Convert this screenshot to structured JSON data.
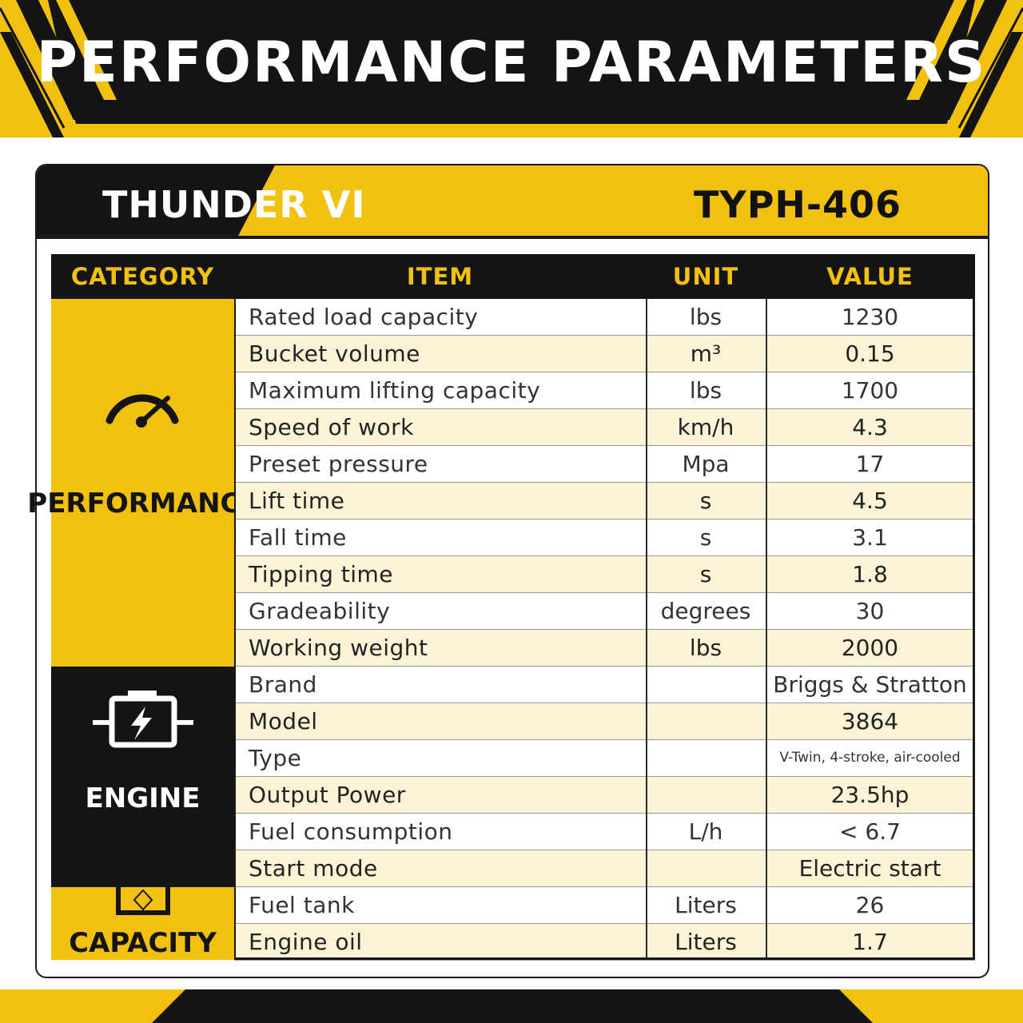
{
  "header": {
    "title": "PERFORMANCE PARAMETERS"
  },
  "product": {
    "name": "THUNDER VI",
    "model": "TYPH-406"
  },
  "table": {
    "columns": [
      "CATEGORY",
      "ITEM",
      "UNIT",
      "VALUE"
    ],
    "categories": [
      {
        "label": "PERFORMANCE",
        "icon": "speedometer-icon"
      },
      {
        "label": "ENGINE",
        "icon": "engine-battery-icon"
      },
      {
        "label": "CAPACITY",
        "icon": "tank-icon"
      }
    ],
    "rows": [
      {
        "item": "Rated load capacity",
        "unit": "lbs",
        "value": "1230"
      },
      {
        "item": "Bucket volume",
        "unit": "m³",
        "value": "0.15"
      },
      {
        "item": "Maximum lifting capacity",
        "unit": "lbs",
        "value": "1700"
      },
      {
        "item": "Speed of work",
        "unit": "km/h",
        "value": "4.3"
      },
      {
        "item": "Preset pressure",
        "unit": "Mpa",
        "value": "17"
      },
      {
        "item": "Lift time",
        "unit": "s",
        "value": "4.5"
      },
      {
        "item": "Fall time",
        "unit": "s",
        "value": "3.1"
      },
      {
        "item": "Tipping time",
        "unit": "s",
        "value": "1.8"
      },
      {
        "item": "Gradeability",
        "unit": "degrees",
        "value": "30"
      },
      {
        "item": "Working weight",
        "unit": "lbs",
        "value": "2000"
      },
      {
        "item": "Brand",
        "unit": "",
        "value": "Briggs & Stratton"
      },
      {
        "item": "Model",
        "unit": "",
        "value": "3864"
      },
      {
        "item": "Type",
        "unit": "",
        "value": "V-Twin, 4-stroke, air-cooled"
      },
      {
        "item": "Output Power",
        "unit": "",
        "value": "23.5hp"
      },
      {
        "item": "Fuel consumption",
        "unit": "L/h",
        "value": "< 6.7"
      },
      {
        "item": "Start mode",
        "unit": "",
        "value": "Electric start"
      },
      {
        "item": "Fuel tank",
        "unit": "Liters",
        "value": "26"
      },
      {
        "item": "Engine oil",
        "unit": "Liters",
        "value": "1.7"
      }
    ]
  },
  "colors": {
    "accent": "#f2c10f",
    "dark": "#141414",
    "row_alt": "#fbf3d6"
  }
}
